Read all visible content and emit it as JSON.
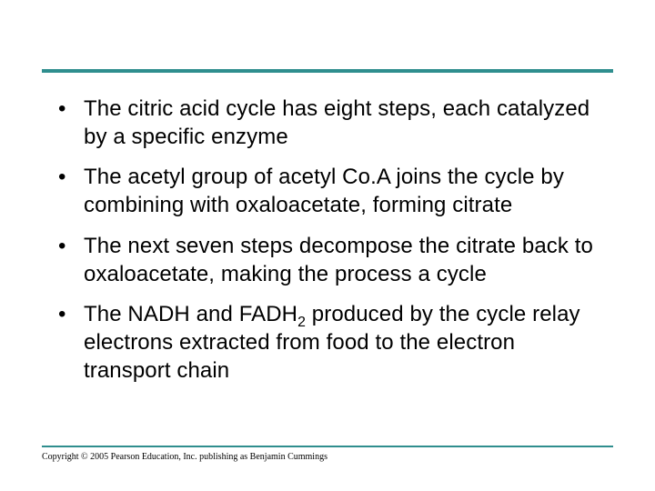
{
  "rule_color": "#2f8e8e",
  "bullets": [
    {
      "pre": "The citric acid cycle has eight steps, each catalyzed by a specific enzyme",
      "sub": "",
      "post": ""
    },
    {
      "pre": "The acetyl group of acetyl Co.A joins the cycle by combining with oxaloacetate, forming citrate",
      "sub": "",
      "post": ""
    },
    {
      "pre": "The next seven steps decompose the citrate back to oxaloacetate, making the process a cycle",
      "sub": "",
      "post": ""
    },
    {
      "pre": "The NADH and FADH",
      "sub": "2",
      "post": " produced by the cycle relay electrons extracted from food to the electron transport chain"
    }
  ],
  "copyright": "Copyright © 2005 Pearson Education, Inc. publishing as Benjamin Cummings"
}
